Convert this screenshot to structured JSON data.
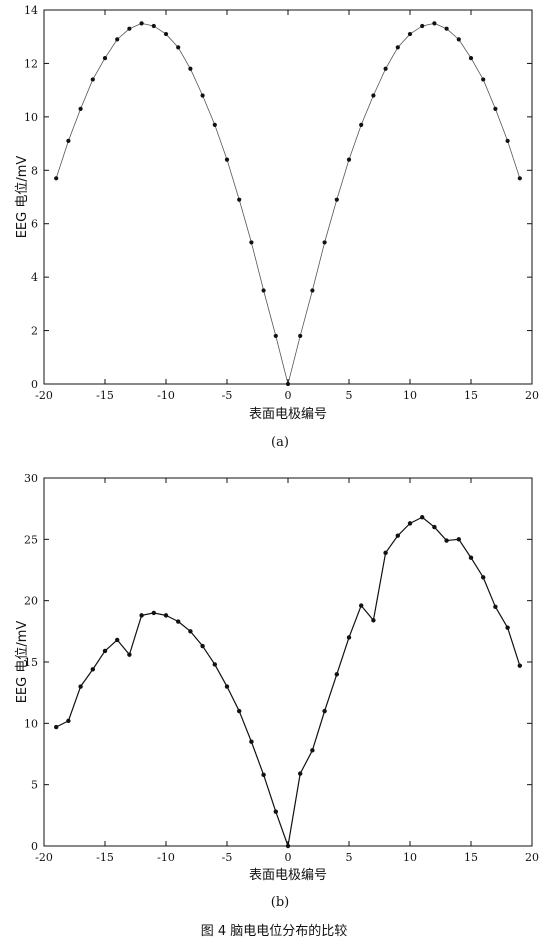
{
  "chart_data": [
    {
      "type": "line",
      "subplot_label": "(a)",
      "xlabel": "表面电极编号",
      "ylabel": "EEG 电位/mV",
      "xlim": [
        -20,
        20
      ],
      "ylim": [
        0,
        14
      ],
      "xticks": [
        -20,
        -15,
        -10,
        -5,
        0,
        5,
        10,
        15,
        20
      ],
      "yticks": [
        0,
        2,
        4,
        6,
        8,
        10,
        12,
        14
      ],
      "series": [
        {
          "x": [
            -19,
            -18,
            -17,
            -16,
            -15,
            -14,
            -13,
            -12,
            -11,
            -10,
            -9,
            -8,
            -7,
            -6,
            -5,
            -4,
            -3,
            -2,
            -1,
            0,
            1,
            2,
            3,
            4,
            5,
            6,
            7,
            8,
            9,
            10,
            11,
            12,
            13,
            14,
            15,
            16,
            17,
            18,
            19
          ],
          "y": [
            7.7,
            9.1,
            10.3,
            11.4,
            12.2,
            12.9,
            13.3,
            13.5,
            13.4,
            13.1,
            12.6,
            11.8,
            10.8,
            9.7,
            8.4,
            6.9,
            5.3,
            3.5,
            1.8,
            0.0,
            1.8,
            3.5,
            5.3,
            6.9,
            8.4,
            9.7,
            10.8,
            11.8,
            12.6,
            13.1,
            13.4,
            13.5,
            13.3,
            12.9,
            12.2,
            11.4,
            10.3,
            9.1,
            7.7
          ]
        }
      ]
    },
    {
      "type": "line",
      "subplot_label": "(b)",
      "xlabel": "表面电极编号",
      "ylabel": "EEG 电位/mV",
      "xlim": [
        -20,
        20
      ],
      "ylim": [
        0,
        30
      ],
      "xticks": [
        -20,
        -15,
        -10,
        -5,
        0,
        5,
        10,
        15,
        20
      ],
      "yticks": [
        0,
        5,
        10,
        15,
        20,
        25,
        30
      ],
      "series": [
        {
          "x": [
            -19,
            -18,
            -17,
            -16,
            -15,
            -14,
            -13,
            -12,
            -11,
            -10,
            -9,
            -8,
            -7,
            -6,
            -5,
            -4,
            -3,
            -2,
            -1,
            0,
            1,
            2,
            3,
            4,
            5,
            6,
            7,
            8,
            9,
            10,
            11,
            12,
            13,
            14,
            15,
            16,
            17,
            18,
            19
          ],
          "y": [
            9.7,
            10.2,
            13.0,
            14.4,
            15.9,
            16.8,
            15.6,
            18.8,
            19.0,
            18.8,
            18.3,
            17.5,
            16.3,
            14.8,
            13.0,
            11.0,
            8.5,
            5.8,
            2.8,
            0.0,
            5.9,
            7.8,
            11.0,
            14.0,
            17.0,
            19.6,
            18.4,
            23.9,
            25.3,
            26.3,
            26.8,
            26.0,
            24.9,
            25.0,
            23.5,
            21.9,
            19.5,
            17.8,
            14.7
          ]
        }
      ]
    }
  ],
  "caption": "图 4  脑电电位分布的比较"
}
